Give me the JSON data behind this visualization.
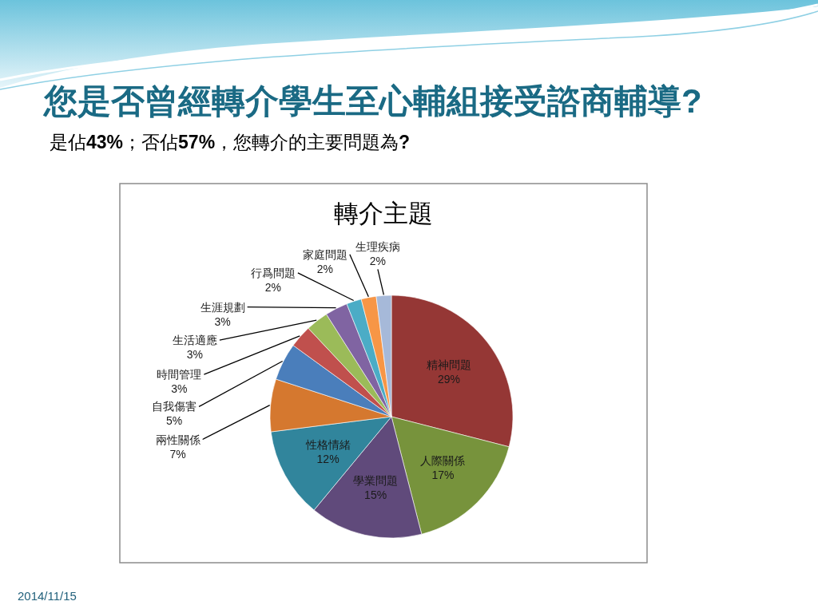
{
  "chart_data": {
    "type": "pie",
    "title": "您是否曾經轉介學生至心輔組接受諮商輔導?",
    "subtitle": "是佔43%；否佔57%，您轉介的主要問題為?",
    "annotations": [
      "轉介主題",
      "2014/11/15"
    ],
    "categories": [
      "精神問題",
      "人際關係",
      "學業問題",
      "性格情緒",
      "兩性關係",
      "自我傷害",
      "時間管理",
      "生活適應",
      "生涯規劃",
      "行爲問題",
      "家庭問題",
      "生理疾病"
    ],
    "values": [
      29,
      17,
      15,
      12,
      7,
      5,
      3,
      3,
      3,
      2,
      2,
      2
    ],
    "value_labels": [
      "29%",
      "17%",
      "15%",
      "12%",
      "7%",
      "5%",
      "3%",
      "3%",
      "3%",
      "2%",
      "2%",
      "2%"
    ],
    "colors": [
      "#953735",
      "#77933c",
      "#604a7b",
      "#31859c",
      "#d5782f",
      "#4a7ebb",
      "#c0504d",
      "#9bbb59",
      "#8064a2",
      "#4bacc6",
      "#f79646",
      "#a6b9d9"
    ]
  }
}
